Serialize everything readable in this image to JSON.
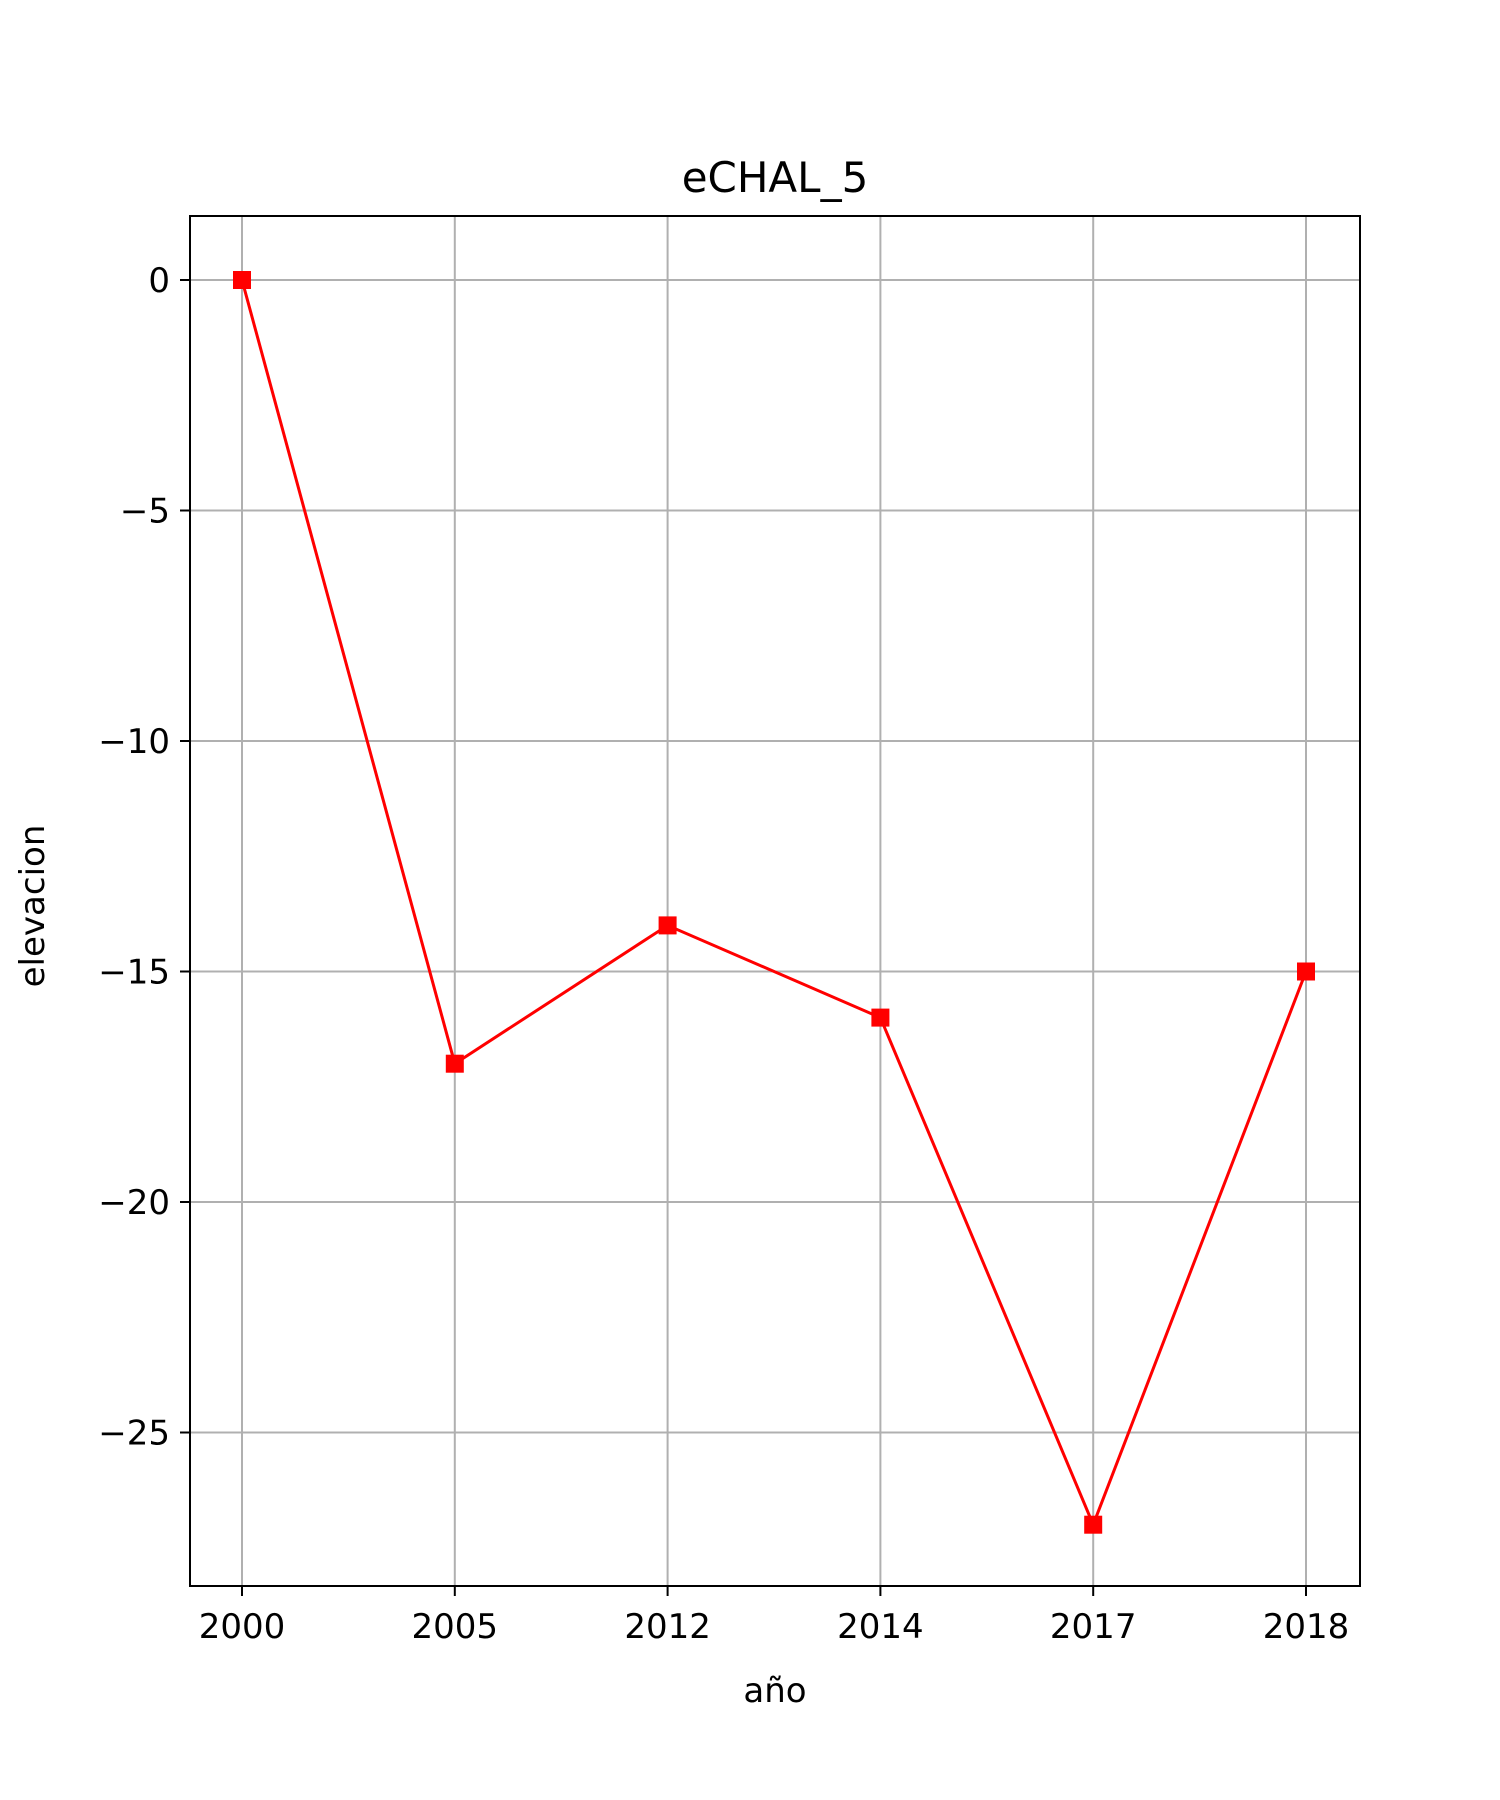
{
  "chart_data": {
    "type": "line",
    "title": "eCHAL_5",
    "xlabel": "año",
    "ylabel": "elevacion",
    "categories": [
      "2000",
      "2005",
      "2012",
      "2014",
      "2017",
      "2018"
    ],
    "series": [
      {
        "values": [
          0,
          -17,
          -14,
          -16,
          -27,
          -15
        ],
        "color": "#ff0000",
        "marker": "square"
      }
    ],
    "yticks": [
      0,
      -5,
      -10,
      -15,
      -20,
      -25
    ],
    "ytick_labels": [
      "0",
      "−5",
      "−10",
      "−15",
      "−20",
      "−25"
    ],
    "ylim": [
      -28.35,
      1.35
    ],
    "grid": true
  }
}
